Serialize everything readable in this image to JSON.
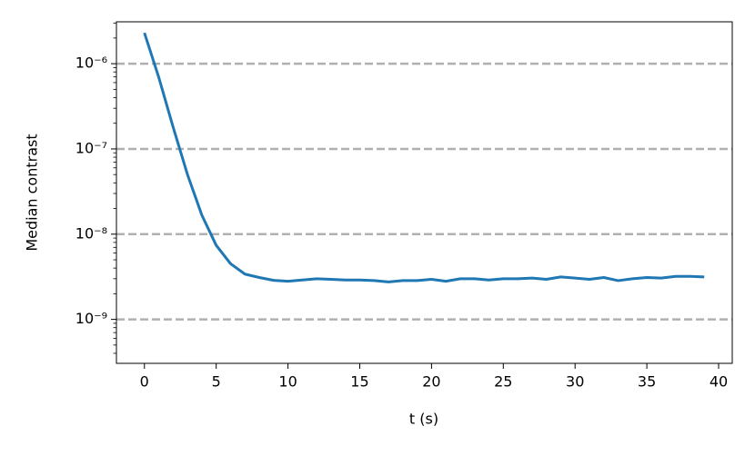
{
  "chart_data": {
    "type": "line",
    "xlabel": "t (s)",
    "ylabel": "Median contrast",
    "x": [
      0,
      1,
      2,
      3,
      4,
      5,
      6,
      7,
      8,
      9,
      10,
      11,
      12,
      13,
      14,
      15,
      16,
      17,
      18,
      19,
      20,
      21,
      22,
      23,
      24,
      25,
      26,
      27,
      28,
      29,
      30,
      31,
      32,
      33,
      34,
      35,
      36,
      37,
      38,
      39
    ],
    "series": [
      {
        "color": "#1f77b4",
        "values": [
          2.3e-06,
          6.9e-07,
          1.8e-07,
          5e-08,
          1.67e-08,
          7.4e-09,
          4.5e-09,
          3.4e-09,
          3.1e-09,
          2.87e-09,
          2.8e-09,
          2.9e-09,
          3e-09,
          2.95e-09,
          2.9e-09,
          2.9e-09,
          2.85e-09,
          2.75e-09,
          2.85e-09,
          2.85e-09,
          2.95e-09,
          2.8e-09,
          3e-09,
          3e-09,
          2.9e-09,
          3e-09,
          3e-09,
          3.05e-09,
          2.95e-09,
          3.15e-09,
          3.05e-09,
          2.95e-09,
          3.1e-09,
          2.85e-09,
          3e-09,
          3.1e-09,
          3.05e-09,
          3.2e-09,
          3.2e-09,
          3.15e-09
        ]
      }
    ],
    "xlim": [
      -1.95,
      40.95
    ],
    "xticks": [
      0,
      5,
      10,
      15,
      20,
      25,
      30,
      35,
      40
    ],
    "ylim": [
      3.05e-10,
      3.1e-06
    ],
    "yscale": "log",
    "yticks": [
      {
        "value": 1e-09,
        "label": "10⁻⁹"
      },
      {
        "value": 1e-08,
        "label": "10⁻⁸"
      },
      {
        "value": 1e-07,
        "label": "10⁻⁷"
      },
      {
        "value": 1e-06,
        "label": "10⁻⁶"
      }
    ],
    "grid": true,
    "grid_color": "#b0b0b0"
  }
}
